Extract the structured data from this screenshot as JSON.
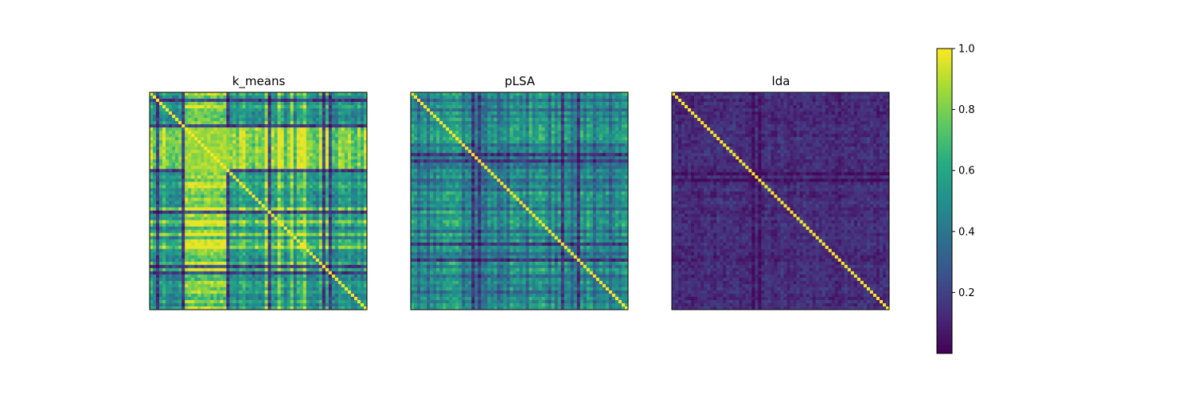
{
  "chart_data": {
    "type": "heatmap",
    "colormap": "viridis",
    "matrix_size": 68,
    "colorbar": {
      "range": [
        0.0,
        1.0
      ],
      "ticks": [
        1.0,
        0.8,
        0.6,
        0.4,
        0.2
      ],
      "tick_labels": [
        "1.0",
        "0.8",
        "0.6",
        "0.4",
        "0.2"
      ]
    },
    "panels": [
      {
        "title": "k_means",
        "diagonal": 1.0,
        "base": 0.58,
        "block": {
          "from": 11,
          "to": 24,
          "value": 0.86
        },
        "low_lines": [
          2,
          10,
          24,
          37,
          54,
          56
        ],
        "bright_lines": [
          11,
          12,
          13,
          14,
          15,
          16,
          17,
          18,
          19,
          20,
          21,
          22,
          23,
          36,
          40,
          44,
          48
        ],
        "noise": 0.1
      },
      {
        "title": "pLSA",
        "diagonal": 1.0,
        "base": 0.52,
        "low_lines": [
          19,
          21,
          47,
          52
        ],
        "dim_lines": [
          2,
          5,
          16,
          23,
          27,
          30,
          36,
          43,
          50,
          57,
          62
        ],
        "noise": 0.09
      },
      {
        "title": "lda",
        "diagonal": 1.0,
        "base": 0.13,
        "low_lines": [
          25,
          27
        ],
        "noise": 0.06
      }
    ]
  }
}
